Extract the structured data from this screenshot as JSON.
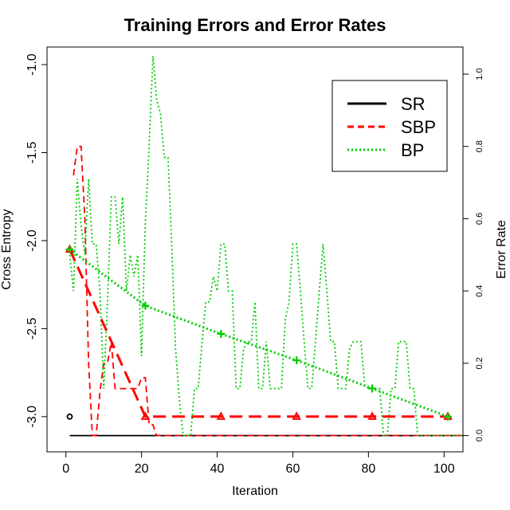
{
  "chart_data": {
    "type": "line",
    "title": "Training Errors and Error Rates",
    "xlabel": "Iteration",
    "ylabel_left": "Cross Entropy",
    "ylabel_right": "Error Rate",
    "xlim": [
      -5,
      105
    ],
    "ylim_left": [
      -3.2,
      -0.9
    ],
    "ylim_right": [
      -0.045,
      1.075
    ],
    "x_ticks": [
      0,
      20,
      40,
      60,
      80,
      100
    ],
    "x_tick_labels": [
      "0",
      "20",
      "40",
      "60",
      "80",
      "100"
    ],
    "y_left_ticks": [
      -3.0,
      -2.5,
      -2.0,
      -1.5,
      -1.0
    ],
    "y_left_tick_labels": [
      "-3.0",
      "-2.5",
      "-2.0",
      "-1.5",
      "-1.0"
    ],
    "y_right_ticks": [
      0.0,
      0.2,
      0.4,
      0.6,
      0.8,
      1.0
    ],
    "y_right_tick_labels": [
      "0.0",
      "0.2",
      "0.4",
      "0.6",
      "0.8",
      "1.0"
    ],
    "legend": {
      "position": "top-right",
      "entries": [
        {
          "label": "SR",
          "color": "#000000",
          "dash": "solid"
        },
        {
          "label": "SBP",
          "color": "#ff0000",
          "dash": "dashed"
        },
        {
          "label": "BP",
          "color": "#00cd00",
          "dash": "dotted"
        }
      ]
    },
    "error_rate_series": [
      {
        "name": "SR",
        "color": "#000000",
        "dash": "solid",
        "x": [
          1,
          105
        ],
        "y": [
          0.0,
          0.0
        ]
      },
      {
        "name": "SBP",
        "color": "#ff0000",
        "dash": "dashed",
        "x": [
          2,
          3,
          4,
          5,
          6,
          7,
          8,
          9,
          10,
          11,
          12,
          13,
          14,
          15,
          16,
          17,
          18,
          19,
          20,
          21,
          22,
          23,
          24,
          25,
          105
        ],
        "y": [
          0.72,
          0.8,
          0.8,
          0.6,
          0.2,
          0.0,
          0.0,
          0.12,
          0.2,
          0.2,
          0.26,
          0.13,
          0.13,
          0.13,
          0.13,
          0.13,
          0.13,
          0.13,
          0.16,
          0.16,
          0.03,
          0.03,
          0.0,
          0.0,
          0.0
        ]
      },
      {
        "name": "BP",
        "color": "#00cd00",
        "dash": "dotted",
        "x": [
          1,
          2,
          3,
          4,
          5,
          6,
          7,
          8,
          9,
          10,
          11,
          12,
          13,
          14,
          15,
          16,
          17,
          18,
          19,
          20,
          21,
          22,
          23,
          24,
          25,
          26,
          27,
          28,
          29,
          30,
          31,
          32,
          33,
          34,
          35,
          36,
          37,
          38,
          39,
          40,
          41,
          42,
          43,
          44,
          45,
          46,
          47,
          48,
          49,
          50,
          51,
          52,
          53,
          54,
          55,
          56,
          57,
          58,
          59,
          60,
          61,
          62,
          63,
          64,
          65,
          66,
          67,
          68,
          69,
          70,
          71,
          72,
          73,
          74,
          75,
          76,
          77,
          78,
          79,
          80,
          81,
          82,
          83,
          84,
          85,
          86,
          87,
          88,
          89,
          90,
          91,
          92,
          93,
          94,
          95,
          96,
          97,
          98,
          99,
          100,
          101,
          102,
          103,
          104,
          105
        ],
        "y": [
          0.5,
          0.4,
          0.71,
          0.58,
          0.5,
          0.71,
          0.53,
          0.53,
          0.4,
          0.13,
          0.37,
          0.66,
          0.66,
          0.53,
          0.66,
          0.4,
          0.5,
          0.44,
          0.5,
          0.22,
          0.59,
          0.8,
          1.05,
          0.93,
          0.89,
          0.77,
          0.77,
          0.52,
          0.24,
          0.1,
          0.0,
          0.0,
          0.0,
          0.13,
          0.13,
          0.26,
          0.37,
          0.37,
          0.44,
          0.4,
          0.53,
          0.53,
          0.4,
          0.4,
          0.13,
          0.13,
          0.24,
          0.26,
          0.26,
          0.37,
          0.13,
          0.13,
          0.26,
          0.13,
          0.13,
          0.13,
          0.13,
          0.32,
          0.37,
          0.53,
          0.53,
          0.4,
          0.26,
          0.13,
          0.13,
          0.26,
          0.4,
          0.53,
          0.4,
          0.26,
          0.26,
          0.13,
          0.13,
          0.13,
          0.24,
          0.26,
          0.26,
          0.26,
          0.14,
          0.13,
          0.13,
          0.13,
          0.13,
          0.0,
          0.0,
          0.13,
          0.13,
          0.26,
          0.26,
          0.26,
          0.13,
          0.13,
          0.0,
          0.0,
          0.0,
          0.0,
          0.0,
          0.0,
          0.0,
          0.0,
          0.0,
          0.0,
          0.0,
          0.0,
          0.0
        ]
      }
    ],
    "cross_entropy_series": [
      {
        "name": "SR",
        "color": "#000000",
        "dash": "solid",
        "marker": "circle",
        "x": [
          1
        ],
        "y": [
          -3.0
        ]
      },
      {
        "name": "SBP",
        "color": "#ff0000",
        "dash": "long-dashed",
        "marker": "triangle",
        "x": [
          1,
          21,
          41,
          61,
          81,
          101
        ],
        "y": [
          -2.05,
          -3.0,
          -3.0,
          -3.0,
          -3.0,
          -3.0
        ]
      },
      {
        "name": "BP",
        "color": "#00cd00",
        "dash": "dotted",
        "marker": "plus",
        "x": [
          1,
          21,
          41,
          61,
          81,
          101
        ],
        "y": [
          -2.05,
          -2.37,
          -2.53,
          -2.68,
          -2.84,
          -3.0
        ]
      }
    ]
  }
}
